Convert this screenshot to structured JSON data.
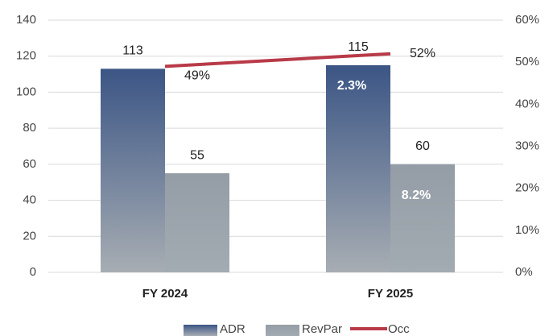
{
  "chart_data": {
    "type": "bar",
    "categories": [
      "FY 2024",
      "FY 2025"
    ],
    "series": [
      {
        "name": "ADR",
        "color": "#3b5585",
        "values": [
          113,
          115
        ]
      },
      {
        "name": "RevPar",
        "color": "#949da6",
        "values": [
          55,
          60
        ]
      },
      {
        "name": "Occ",
        "type": "line",
        "axis": "y2",
        "color": "#b83a48",
        "values": [
          49,
          52
        ],
        "value_labels": [
          "49%",
          "52%"
        ]
      }
    ],
    "annotations": [
      "2.3%",
      "8.2%"
    ],
    "ylim": [
      0,
      140
    ],
    "yticks": [
      0,
      20,
      40,
      60,
      80,
      100,
      120,
      140
    ],
    "y2lim": [
      0,
      60
    ],
    "y2ticks": [
      {
        "value": 0,
        "label": "0%"
      },
      {
        "value": 10,
        "label": "10%"
      },
      {
        "value": 20,
        "label": "20%"
      },
      {
        "value": 30,
        "label": "30%"
      },
      {
        "value": 40,
        "label": "40%"
      },
      {
        "value": 50,
        "label": "50%"
      },
      {
        "value": 60,
        "label": "60%"
      }
    ],
    "grid": true,
    "legend": "bottom"
  }
}
